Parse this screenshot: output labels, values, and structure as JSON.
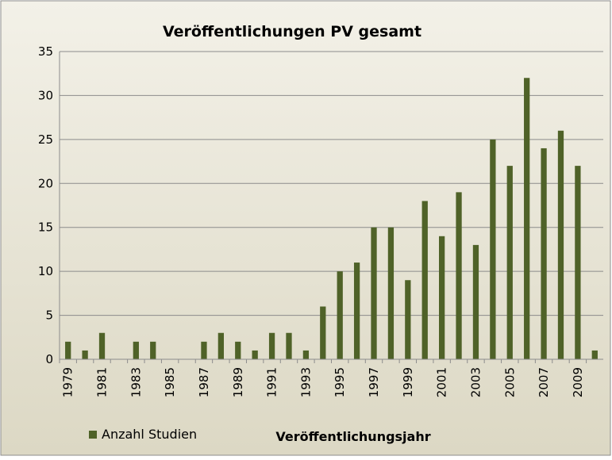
{
  "chart_data": {
    "type": "bar",
    "title": "Veröffentlichungen PV gesamt",
    "x_label": "Veröffentlichungsjahr",
    "categories": [
      "1979",
      null,
      "1981",
      null,
      "1983",
      null,
      "1985",
      null,
      "1987",
      null,
      "1989",
      null,
      "1991",
      null,
      "1993",
      null,
      "1995",
      null,
      "1997",
      null,
      "1999",
      null,
      "2001",
      null,
      "2003",
      null,
      "2005",
      null,
      "2007",
      null,
      "2009",
      null
    ],
    "series": [
      {
        "name": "Anzahl Studien",
        "color": "#4f6228",
        "values": [
          2,
          1,
          3,
          0,
          2,
          2,
          0,
          0,
          2,
          3,
          2,
          1,
          3,
          3,
          1,
          6,
          10,
          11,
          15,
          15,
          9,
          18,
          14,
          19,
          13,
          25,
          22,
          32,
          24,
          26,
          22,
          1
        ]
      }
    ],
    "ylim": [
      0,
      35
    ],
    "yticks": [
      0,
      5,
      10,
      15,
      20,
      25,
      30,
      35
    ],
    "grid": true,
    "legend": "bottom-left"
  }
}
